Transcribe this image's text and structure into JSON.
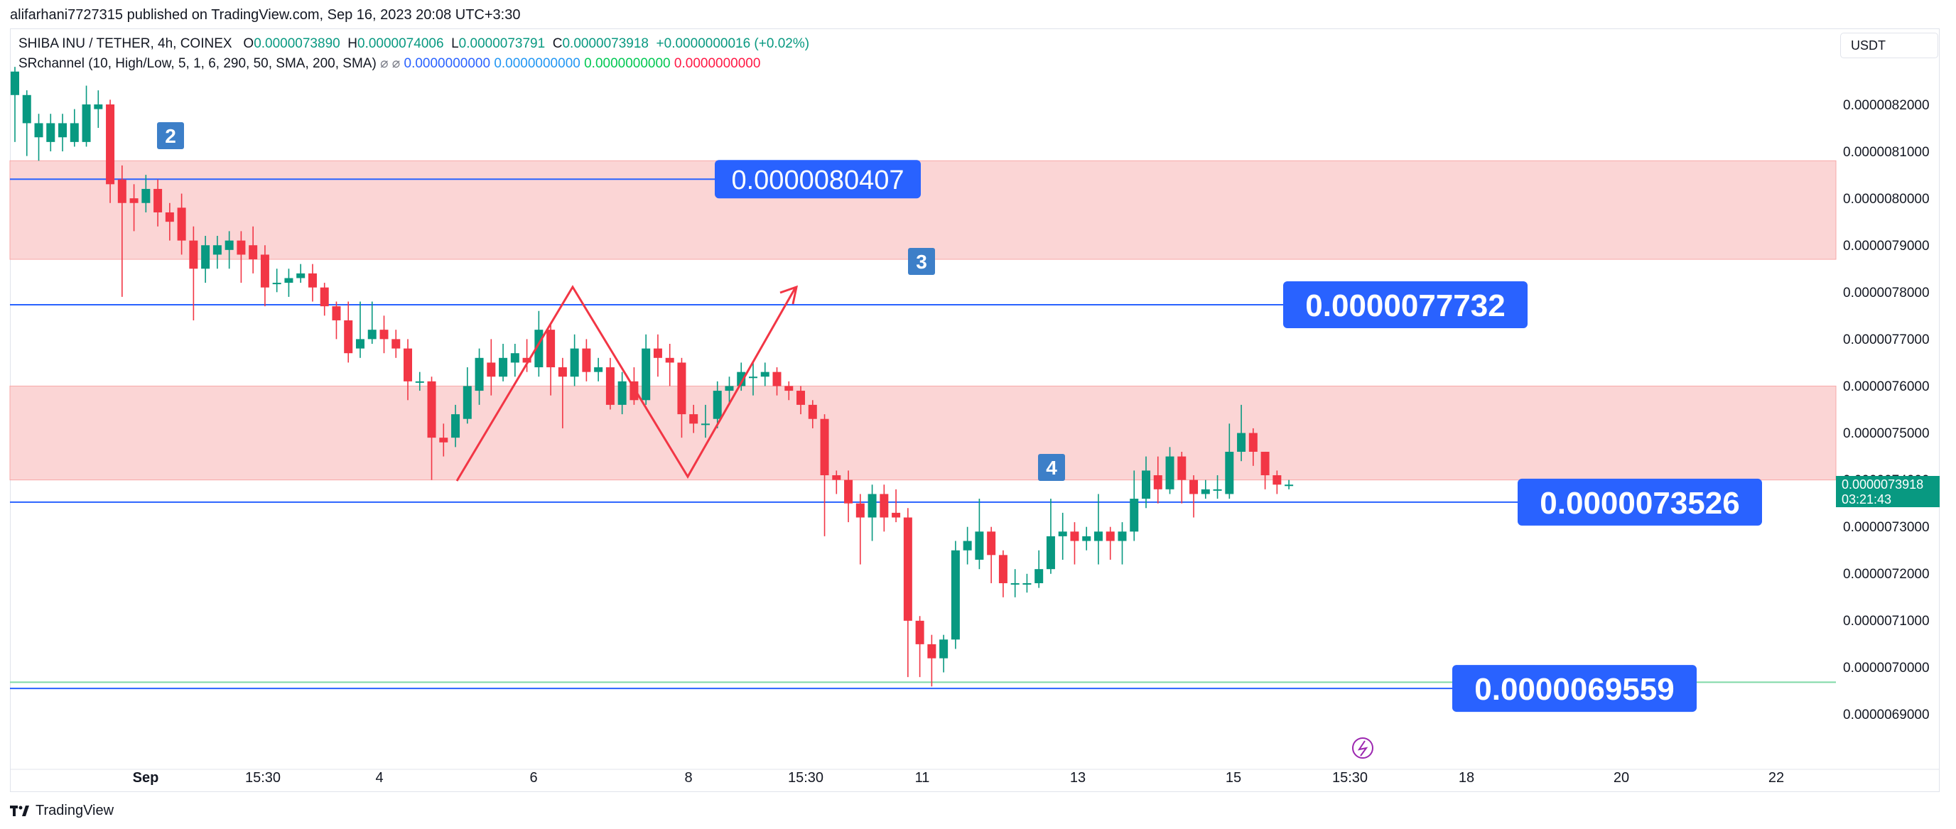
{
  "header": {
    "published": "alifarhani7727315 published on TradingView.com, Sep 16, 2023 20:08 UTC+3:30"
  },
  "legend": {
    "symbol": "SHIBA INU / TETHER, 4h, COINEX",
    "open_label": "O",
    "open": "0.0000073890",
    "high_label": "H",
    "high": "0.0000074006",
    "low_label": "L",
    "low": "0.0000073791",
    "close_label": "C",
    "close": "0.0000073918",
    "change": "+0.0000000016 (+0.02%)",
    "indicator": "SRchannel (10, High/Low, 5, 1, 6, 290, 50, SMA, 200, SMA)",
    "indicator_icons": "⌀ ⌀",
    "indicator_values": [
      "0.0000000000",
      "0.0000000000",
      "0.0000000000",
      "0.0000000000"
    ],
    "indicator_colors": [
      "#2962ff",
      "#2196f3",
      "#00c853",
      "#ff1744"
    ]
  },
  "currency_button": "USDT",
  "footer": {
    "brand": "TradingView"
  },
  "colors": {
    "up": "#089981",
    "down": "#f23645",
    "zone": "#fbd3d3",
    "line": "#2962ff",
    "label_bg": "#2962ff",
    "marker_bg": "#3d7fc8",
    "drawing": "#f23645"
  },
  "chart_data": {
    "type": "candlestick",
    "ylim": [
      6.85e-06,
      8.3e-06
    ],
    "y_ticks": [
      "0.0000082000",
      "0.0000081000",
      "0.0000080000",
      "0.0000079000",
      "0.0000078000",
      "0.0000077000",
      "0.0000076000",
      "0.0000075000",
      "0.0000074000",
      "0.0000073000",
      "0.0000072000",
      "0.0000071000",
      "0.0000070000",
      "0.0000069000"
    ],
    "x_ticks": [
      "Sep",
      "15:30",
      "4",
      "6",
      "8",
      "15:30",
      "11",
      "13",
      "15",
      "15:30",
      "18",
      "20",
      "22"
    ],
    "current_price": {
      "value": "0.0000073918",
      "countdown": "03:21:43"
    },
    "zones": [
      {
        "from": 7.87e-06,
        "to": 8.08e-06
      },
      {
        "from": 7.4e-06,
        "to": 7.6e-06
      }
    ],
    "horizontal_lines": [
      {
        "value": 8.0407e-06,
        "label": "0.0000080407"
      },
      {
        "value": 7.7732e-06,
        "label": "0.0000077732"
      },
      {
        "value": 7.3526e-06,
        "label": "0.0000073526"
      },
      {
        "value": 6.9559e-06,
        "label": "0.0000069559"
      }
    ],
    "markers": [
      "2",
      "3",
      "4"
    ],
    "candles": [
      [
        8.22e-06,
        8.27e-06,
        8.12e-06,
        8.28e-06
      ],
      [
        8.16e-06,
        8.22e-06,
        8.09e-06,
        8.23e-06
      ],
      [
        8.13e-06,
        8.16e-06,
        8.08e-06,
        8.18e-06
      ],
      [
        8.12e-06,
        8.16e-06,
        8.1e-06,
        8.18e-06
      ],
      [
        8.13e-06,
        8.16e-06,
        8.1e-06,
        8.18e-06
      ],
      [
        8.12e-06,
        8.16e-06,
        8.11e-06,
        8.19e-06
      ],
      [
        8.12e-06,
        8.2e-06,
        8.11e-06,
        8.24e-06
      ],
      [
        8.19e-06,
        8.2e-06,
        8.15e-06,
        8.23e-06
      ],
      [
        8.2e-06,
        8.03e-06,
        7.99e-06,
        8.21e-06
      ],
      [
        8.04e-06,
        7.99e-06,
        7.79e-06,
        8.07e-06
      ],
      [
        8e-06,
        7.99e-06,
        7.93e-06,
        8.03e-06
      ],
      [
        7.99e-06,
        8.02e-06,
        7.97e-06,
        8.05e-06
      ],
      [
        8.02e-06,
        7.97e-06,
        7.94e-06,
        8.04e-06
      ],
      [
        7.97e-06,
        7.95e-06,
        7.91e-06,
        7.99e-06
      ],
      [
        7.98e-06,
        7.91e-06,
        7.88e-06,
        8.01e-06
      ],
      [
        7.91e-06,
        7.85e-06,
        7.74e-06,
        7.94e-06
      ],
      [
        7.85e-06,
        7.9e-06,
        7.82e-06,
        7.92e-06
      ],
      [
        7.88e-06,
        7.9e-06,
        7.85e-06,
        7.92e-06
      ],
      [
        7.89e-06,
        7.91e-06,
        7.85e-06,
        7.93e-06
      ],
      [
        7.91e-06,
        7.88e-06,
        7.82e-06,
        7.93e-06
      ],
      [
        7.9e-06,
        7.87e-06,
        7.84e-06,
        7.94e-06
      ],
      [
        7.88e-06,
        7.81e-06,
        7.77e-06,
        7.9e-06
      ],
      [
        7.82e-06,
        7.82e-06,
        7.8e-06,
        7.85e-06
      ],
      [
        7.82e-06,
        7.83e-06,
        7.79e-06,
        7.85e-06
      ],
      [
        7.83e-06,
        7.84e-06,
        7.82e-06,
        7.86e-06
      ],
      [
        7.84e-06,
        7.81e-06,
        7.78e-06,
        7.86e-06
      ],
      [
        7.81e-06,
        7.77e-06,
        7.75e-06,
        7.82e-06
      ],
      [
        7.77e-06,
        7.74e-06,
        7.7e-06,
        7.78e-06
      ],
      [
        7.74e-06,
        7.67e-06,
        7.65e-06,
        7.78e-06
      ],
      [
        7.68e-06,
        7.7e-06,
        7.66e-06,
        7.78e-06
      ],
      [
        7.7e-06,
        7.72e-06,
        7.69e-06,
        7.78e-06
      ],
      [
        7.72e-06,
        7.7e-06,
        7.67e-06,
        7.75e-06
      ],
      [
        7.7e-06,
        7.68e-06,
        7.66e-06,
        7.72e-06
      ],
      [
        7.68e-06,
        7.61e-06,
        7.57e-06,
        7.7e-06
      ],
      [
        7.61e-06,
        7.61e-06,
        7.59e-06,
        7.63e-06
      ],
      [
        7.61e-06,
        7.49e-06,
        7.4e-06,
        7.62e-06
      ],
      [
        7.49e-06,
        7.48e-06,
        7.45e-06,
        7.52e-06
      ],
      [
        7.49e-06,
        7.54e-06,
        7.47e-06,
        7.56e-06
      ],
      [
        7.53e-06,
        7.6e-06,
        7.52e-06,
        7.64e-06
      ],
      [
        7.59e-06,
        7.66e-06,
        7.56e-06,
        7.68e-06
      ],
      [
        7.65e-06,
        7.62e-06,
        7.58e-06,
        7.7e-06
      ],
      [
        7.62e-06,
        7.66e-06,
        7.61e-06,
        7.69e-06
      ],
      [
        7.65e-06,
        7.67e-06,
        7.62e-06,
        7.69e-06
      ],
      [
        7.66e-06,
        7.65e-06,
        7.63e-06,
        7.7e-06
      ],
      [
        7.64e-06,
        7.72e-06,
        7.62e-06,
        7.76e-06
      ],
      [
        7.72e-06,
        7.64e-06,
        7.58e-06,
        7.73e-06
      ],
      [
        7.64e-06,
        7.62e-06,
        7.51e-06,
        7.66e-06
      ],
      [
        7.62e-06,
        7.68e-06,
        7.6e-06,
        7.71e-06
      ],
      [
        7.68e-06,
        7.63e-06,
        7.61e-06,
        7.7e-06
      ],
      [
        7.63e-06,
        7.64e-06,
        7.61e-06,
        7.66e-06
      ],
      [
        7.64e-06,
        7.56e-06,
        7.55e-06,
        7.66e-06
      ],
      [
        7.56e-06,
        7.61e-06,
        7.54e-06,
        7.63e-06
      ],
      [
        7.61e-06,
        7.57e-06,
        7.56e-06,
        7.64e-06
      ],
      [
        7.57e-06,
        7.68e-06,
        7.56e-06,
        7.71e-06
      ],
      [
        7.68e-06,
        7.66e-06,
        7.62e-06,
        7.71e-06
      ],
      [
        7.66e-06,
        7.65e-06,
        7.6e-06,
        7.69e-06
      ],
      [
        7.65e-06,
        7.54e-06,
        7.49e-06,
        7.66e-06
      ],
      [
        7.54e-06,
        7.52e-06,
        7.5e-06,
        7.56e-06
      ],
      [
        7.52e-06,
        7.52e-06,
        7.49e-06,
        7.56e-06
      ],
      [
        7.53e-06,
        7.59e-06,
        7.51e-06,
        7.61e-06
      ],
      [
        7.59e-06,
        7.6e-06,
        7.56e-06,
        7.62e-06
      ],
      [
        7.6e-06,
        7.63e-06,
        7.59e-06,
        7.65e-06
      ],
      [
        7.62e-06,
        7.62e-06,
        7.58e-06,
        7.65e-06
      ],
      [
        7.62e-06,
        7.63e-06,
        7.6e-06,
        7.65e-06
      ],
      [
        7.63e-06,
        7.6e-06,
        7.58e-06,
        7.64e-06
      ],
      [
        7.6e-06,
        7.59e-06,
        7.57e-06,
        7.61e-06
      ],
      [
        7.59e-06,
        7.56e-06,
        7.54e-06,
        7.6e-06
      ],
      [
        7.56e-06,
        7.53e-06,
        7.51e-06,
        7.57e-06
      ],
      [
        7.53e-06,
        7.41e-06,
        7.28e-06,
        7.54e-06
      ],
      [
        7.41e-06,
        7.4e-06,
        7.37e-06,
        7.42e-06
      ],
      [
        7.4e-06,
        7.35e-06,
        7.31e-06,
        7.42e-06
      ],
      [
        7.35e-06,
        7.32e-06,
        7.22e-06,
        7.37e-06
      ],
      [
        7.32e-06,
        7.37e-06,
        7.27e-06,
        7.39e-06
      ],
      [
        7.37e-06,
        7.32e-06,
        7.29e-06,
        7.39e-06
      ],
      [
        7.33e-06,
        7.32e-06,
        7.31e-06,
        7.38e-06
      ],
      [
        7.32e-06,
        7.1e-06,
        6.98e-06,
        7.34e-06
      ],
      [
        7.1e-06,
        7.05e-06,
        6.98e-06,
        7.11e-06
      ],
      [
        7.05e-06,
        7.02e-06,
        6.96e-06,
        7.07e-06
      ],
      [
        7.02e-06,
        7.06e-06,
        6.99e-06,
        7.07e-06
      ],
      [
        7.06e-06,
        7.25e-06,
        7.04e-06,
        7.27e-06
      ],
      [
        7.25e-06,
        7.27e-06,
        7.22e-06,
        7.3e-06
      ],
      [
        7.23e-06,
        7.29e-06,
        7.21e-06,
        7.36e-06
      ],
      [
        7.29e-06,
        7.24e-06,
        7.18e-06,
        7.3e-06
      ],
      [
        7.24e-06,
        7.18e-06,
        7.15e-06,
        7.25e-06
      ],
      [
        7.18e-06,
        7.18e-06,
        7.15e-06,
        7.21e-06
      ],
      [
        7.18e-06,
        7.18e-06,
        7.16e-06,
        7.2e-06
      ],
      [
        7.18e-06,
        7.21e-06,
        7.17e-06,
        7.25e-06
      ],
      [
        7.21e-06,
        7.28e-06,
        7.2e-06,
        7.36e-06
      ],
      [
        7.28e-06,
        7.29e-06,
        7.23e-06,
        7.33e-06
      ],
      [
        7.29e-06,
        7.27e-06,
        7.22e-06,
        7.31e-06
      ],
      [
        7.27e-06,
        7.28e-06,
        7.25e-06,
        7.3e-06
      ],
      [
        7.27e-06,
        7.29e-06,
        7.22e-06,
        7.37e-06
      ],
      [
        7.29e-06,
        7.27e-06,
        7.23e-06,
        7.3e-06
      ],
      [
        7.27e-06,
        7.29e-06,
        7.22e-06,
        7.31e-06
      ],
      [
        7.29e-06,
        7.36e-06,
        7.27e-06,
        7.42e-06
      ],
      [
        7.36e-06,
        7.42e-06,
        7.34e-06,
        7.45e-06
      ],
      [
        7.41e-06,
        7.38e-06,
        7.35e-06,
        7.45e-06
      ],
      [
        7.38e-06,
        7.45e-06,
        7.37e-06,
        7.47e-06
      ],
      [
        7.45e-06,
        7.4e-06,
        7.35e-06,
        7.46e-06
      ],
      [
        7.4e-06,
        7.37e-06,
        7.32e-06,
        7.41e-06
      ],
      [
        7.37e-06,
        7.38e-06,
        7.36e-06,
        7.4e-06
      ],
      [
        7.38e-06,
        7.38e-06,
        7.36e-06,
        7.41e-06
      ],
      [
        7.37e-06,
        7.46e-06,
        7.36e-06,
        7.52e-06
      ],
      [
        7.46e-06,
        7.5e-06,
        7.44e-06,
        7.56e-06
      ],
      [
        7.5e-06,
        7.46e-06,
        7.43e-06,
        7.51e-06
      ],
      [
        7.46e-06,
        7.41e-06,
        7.38e-06,
        7.46e-06
      ],
      [
        7.41e-06,
        7.39e-06,
        7.37e-06,
        7.42e-06
      ],
      [
        7.39e-06,
        7.39e-06,
        7.38e-06,
        7.4e-06
      ]
    ]
  }
}
